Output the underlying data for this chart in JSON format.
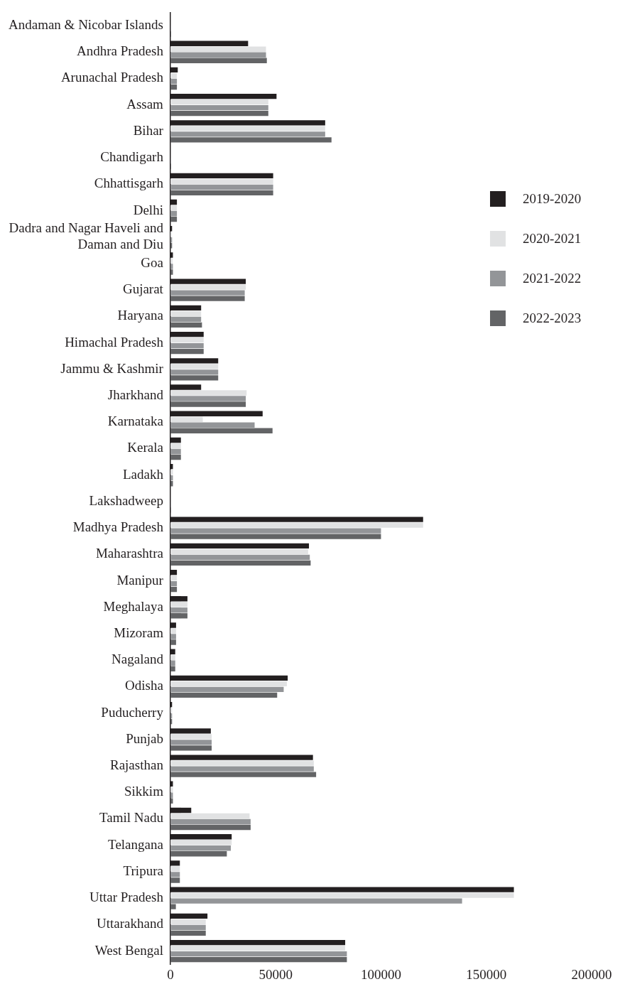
{
  "chart_data": {
    "type": "bar",
    "orientation": "horizontal",
    "legend": "right",
    "categories": [
      "Andaman & Nicobar Islands",
      "Andhra Pradesh",
      "Arunachal Pradesh",
      "Assam",
      "Bihar",
      "Chandigarh",
      "Chhattisgarh",
      "Delhi",
      "Dadra and Nagar Haveli and\nDaman and Diu",
      "Goa",
      "Gujarat",
      "Haryana",
      "Himachal Pradesh",
      "Jammu & Kashmir",
      "Jharkhand",
      "Karnataka",
      "Kerala",
      "Ladakh",
      "Lakshadweep",
      "Madhya Pradesh",
      "Maharashtra",
      "Manipur",
      "Meghalaya",
      "Mizoram",
      "Nagaland",
      "Odisha",
      "Puducherry",
      "Punjab",
      "Rajasthan",
      "Sikkim",
      "Tamil Nadu",
      "Telangana",
      "Tripura",
      "Uttar Pradesh",
      "Uttarakhand",
      "West Bengal"
    ],
    "series": [
      {
        "name": "2019-2020",
        "color": "#231f20",
        "values": [
          null,
          36900,
          3500,
          50400,
          73500,
          null,
          48800,
          3100,
          800,
          1200,
          35800,
          14600,
          15800,
          22700,
          14600,
          43800,
          5000,
          1200,
          null,
          120000,
          65800,
          3100,
          8100,
          2700,
          2300,
          55700,
          800,
          19200,
          67700,
          1200,
          9900,
          29100,
          4500,
          163100,
          17600,
          83000
        ]
      },
      {
        "name": "2020-2021",
        "color": "#e1e2e3",
        "values": [
          null,
          45400,
          3100,
          46500,
          73500,
          null,
          48800,
          3100,
          600,
          1000,
          35800,
          14600,
          15800,
          22700,
          36200,
          15400,
          5000,
          1200,
          null,
          120000,
          65400,
          3100,
          8100,
          2700,
          2300,
          55300,
          800,
          19600,
          68100,
          1200,
          37600,
          29100,
          4500,
          163100,
          16800,
          83000
        ]
      },
      {
        "name": "2021-2022",
        "color": "#939598",
        "values": [
          300,
          45400,
          3100,
          46500,
          73500,
          300,
          48800,
          3100,
          800,
          1200,
          35300,
          14600,
          15800,
          22700,
          35800,
          40000,
          5000,
          1200,
          200,
          100000,
          66200,
          3100,
          8100,
          2700,
          2300,
          53800,
          800,
          19600,
          68100,
          1200,
          38100,
          28700,
          4500,
          138500,
          16800,
          83800
        ]
      },
      {
        "name": "2022-2023",
        "color": "#636466",
        "values": [
          300,
          45800,
          3100,
          46500,
          76500,
          300,
          48800,
          3100,
          800,
          1200,
          35300,
          15000,
          15800,
          22700,
          35800,
          48500,
          5000,
          1200,
          200,
          100000,
          66600,
          3100,
          8100,
          2700,
          2300,
          50700,
          800,
          19600,
          69200,
          1200,
          38100,
          26800,
          4500,
          2600,
          16800,
          83800
        ]
      }
    ],
    "xlim": [
      0,
      200000
    ],
    "xticks": [
      0,
      50000,
      100000,
      150000,
      200000
    ],
    "grid": false
  }
}
